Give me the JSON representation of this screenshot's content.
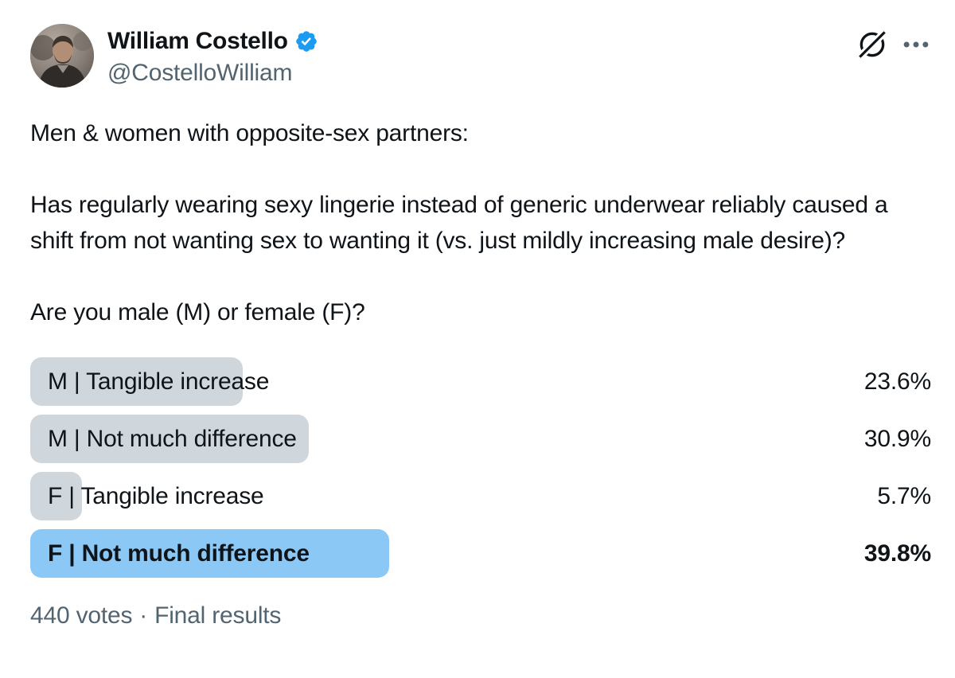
{
  "theme": {
    "background": "#ffffff",
    "text_primary": "#0f1419",
    "text_secondary": "#536471",
    "verified_blue": "#1d9bf0",
    "poll_bar_gray": "#d0d7dc",
    "poll_bar_selected": "#8cc8f5"
  },
  "header": {
    "display_name": "William Costello",
    "handle": "@CostelloWilliam",
    "verified": true,
    "icons": {
      "verified": "verified-badge-icon",
      "grok": "grok-icon",
      "more": "more-options-icon"
    }
  },
  "tweet": {
    "paragraphs": [
      "Men & women with opposite-sex partners:",
      "Has regularly wearing sexy lingerie instead of generic underwear reliably caused a shift from not wanting sex to wanting it (vs. just mildly increasing male desire)?",
      "Are you male (M) or female (F)?"
    ]
  },
  "poll": {
    "options": [
      {
        "label": "M | Tangible increase",
        "percent": 23.6,
        "percent_label": "23.6%",
        "selected": false
      },
      {
        "label": "M | Not much difference",
        "percent": 30.9,
        "percent_label": "30.9%",
        "selected": false
      },
      {
        "label": "F | Tangible increase",
        "percent": 5.7,
        "percent_label": "5.7%",
        "selected": false
      },
      {
        "label": "F | Not much difference",
        "percent": 39.8,
        "percent_label": "39.8%",
        "selected": true
      }
    ],
    "footer": {
      "votes": "440 votes",
      "separator": "·",
      "status": "Final results"
    }
  }
}
